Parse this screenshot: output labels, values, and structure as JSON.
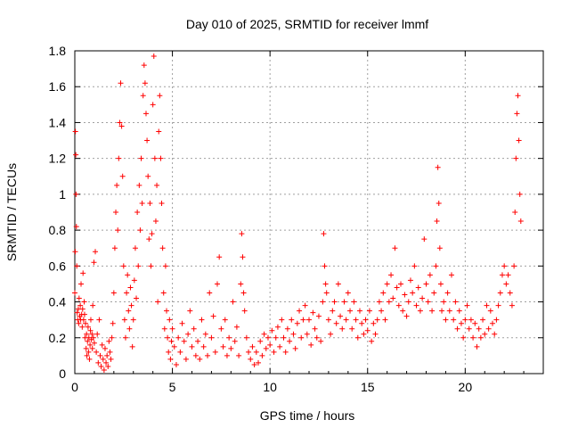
{
  "chart_data": {
    "type": "scatter",
    "title": "Day 010 of 2025, SRMTID for receiver lmmf",
    "xlabel": "GPS time / hours",
    "ylabel": "SRMTID / TECUs",
    "xlim": [
      0,
      24
    ],
    "ylim": [
      0,
      1.8
    ],
    "xticks": [
      0,
      5,
      10,
      15,
      20
    ],
    "yticks": [
      0,
      0.2,
      0.4,
      0.6,
      0.8,
      1,
      1.2,
      1.4,
      1.6,
      1.8
    ],
    "xtick_labels": [
      "0",
      "5",
      "10",
      "15",
      "20"
    ],
    "ytick_labels": [
      "0",
      "0.2",
      "0.4",
      "0.6",
      "0.8",
      "1",
      "1.2",
      "1.4",
      "1.6",
      "1.8"
    ],
    "grid": true,
    "marker": "+",
    "color": "#ff0000",
    "series": [
      {
        "name": "SRMTID",
        "points": [
          [
            0.0,
            0.45
          ],
          [
            0.02,
            0.68
          ],
          [
            0.03,
            1.35
          ],
          [
            0.05,
            1.22
          ],
          [
            0.06,
            1.0
          ],
          [
            0.08,
            0.82
          ],
          [
            0.1,
            0.6
          ],
          [
            0.12,
            0.34
          ],
          [
            0.15,
            0.3
          ],
          [
            0.18,
            0.36
          ],
          [
            0.2,
            0.28
          ],
          [
            0.22,
            0.42
          ],
          [
            0.25,
            0.32
          ],
          [
            0.28,
            0.38
          ],
          [
            0.3,
            0.3
          ],
          [
            0.32,
            0.5
          ],
          [
            0.35,
            0.33
          ],
          [
            0.38,
            0.26
          ],
          [
            0.4,
            0.36
          ],
          [
            0.42,
            0.56
          ],
          [
            0.45,
            0.3
          ],
          [
            0.48,
            0.4
          ],
          [
            0.5,
            0.33
          ],
          [
            0.52,
            0.2
          ],
          [
            0.55,
            0.28
          ],
          [
            0.58,
            0.14
          ],
          [
            0.6,
            0.22
          ],
          [
            0.62,
            0.1
          ],
          [
            0.65,
            0.18
          ],
          [
            0.68,
            0.26
          ],
          [
            0.7,
            0.12
          ],
          [
            0.72,
            0.2
          ],
          [
            0.75,
            0.08
          ],
          [
            0.78,
            0.16
          ],
          [
            0.8,
            0.24
          ],
          [
            0.82,
            0.3
          ],
          [
            0.85,
            0.19
          ],
          [
            0.88,
            0.22
          ],
          [
            0.9,
            0.14
          ],
          [
            0.92,
            0.38
          ],
          [
            0.95,
            0.2
          ],
          [
            0.98,
            0.62
          ],
          [
            1.0,
            0.17
          ],
          [
            1.05,
            0.68
          ],
          [
            1.1,
            0.12
          ],
          [
            1.15,
            0.22
          ],
          [
            1.2,
            0.06
          ],
          [
            1.25,
            0.3
          ],
          [
            1.3,
            0.1
          ],
          [
            1.35,
            0.04
          ],
          [
            1.4,
            0.16
          ],
          [
            1.45,
            0.08
          ],
          [
            1.5,
            0.02
          ],
          [
            1.55,
            0.14
          ],
          [
            1.6,
            0.06
          ],
          [
            1.65,
            0.1
          ],
          [
            1.7,
            0.04
          ],
          [
            1.75,
            0.18
          ],
          [
            1.8,
            0.12
          ],
          [
            1.85,
            0.08
          ],
          [
            1.9,
            0.2
          ],
          [
            1.95,
            0.28
          ],
          [
            2.0,
            0.45
          ],
          [
            2.05,
            0.7
          ],
          [
            2.1,
            0.9
          ],
          [
            2.15,
            1.05
          ],
          [
            2.2,
            0.8
          ],
          [
            2.25,
            1.2
          ],
          [
            2.3,
            1.4
          ],
          [
            2.35,
            1.62
          ],
          [
            2.4,
            1.38
          ],
          [
            2.45,
            1.1
          ],
          [
            2.5,
            0.6
          ],
          [
            2.55,
            0.3
          ],
          [
            2.6,
            0.2
          ],
          [
            2.65,
            0.45
          ],
          [
            2.7,
            0.55
          ],
          [
            2.75,
            0.35
          ],
          [
            2.8,
            0.25
          ],
          [
            2.85,
            0.48
          ],
          [
            2.9,
            0.38
          ],
          [
            2.95,
            0.15
          ],
          [
            3.0,
            0.3
          ],
          [
            3.05,
            0.52
          ],
          [
            3.1,
            0.7
          ],
          [
            3.15,
            0.42
          ],
          [
            3.2,
            0.9
          ],
          [
            3.25,
            0.6
          ],
          [
            3.3,
            1.05
          ],
          [
            3.35,
            0.8
          ],
          [
            3.4,
            1.2
          ],
          [
            3.45,
            0.95
          ],
          [
            3.5,
            1.55
          ],
          [
            3.55,
            1.72
          ],
          [
            3.6,
            1.62
          ],
          [
            3.65,
            1.45
          ],
          [
            3.7,
            1.3
          ],
          [
            3.75,
            1.1
          ],
          [
            3.8,
            0.75
          ],
          [
            3.85,
            0.95
          ],
          [
            3.9,
            0.6
          ],
          [
            3.95,
            0.78
          ],
          [
            4.0,
            1.5
          ],
          [
            4.05,
            1.77
          ],
          [
            4.1,
            1.2
          ],
          [
            4.15,
            0.85
          ],
          [
            4.2,
            1.05
          ],
          [
            4.25,
            0.4
          ],
          [
            4.3,
            1.35
          ],
          [
            4.35,
            1.55
          ],
          [
            4.4,
            1.2
          ],
          [
            4.45,
            0.95
          ],
          [
            4.5,
            0.7
          ],
          [
            4.55,
            0.45
          ],
          [
            4.6,
            0.25
          ],
          [
            4.65,
            0.6
          ],
          [
            4.7,
            0.35
          ],
          [
            4.75,
            0.2
          ],
          [
            4.8,
            0.12
          ],
          [
            4.85,
            0.3
          ],
          [
            4.9,
            0.08
          ],
          [
            4.95,
            0.18
          ],
          [
            5.0,
            0.25
          ],
          [
            5.1,
            0.15
          ],
          [
            5.2,
            0.05
          ],
          [
            5.3,
            0.2
          ],
          [
            5.4,
            0.12
          ],
          [
            5.5,
            0.28
          ],
          [
            5.6,
            0.18
          ],
          [
            5.7,
            0.08
          ],
          [
            5.8,
            0.22
          ],
          [
            5.9,
            0.35
          ],
          [
            6.0,
            0.15
          ],
          [
            6.1,
            0.25
          ],
          [
            6.2,
            0.1
          ],
          [
            6.3,
            0.18
          ],
          [
            6.4,
            0.08
          ],
          [
            6.5,
            0.3
          ],
          [
            6.6,
            0.15
          ],
          [
            6.7,
            0.22
          ],
          [
            6.8,
            0.1
          ],
          [
            6.9,
            0.45
          ],
          [
            7.0,
            0.2
          ],
          [
            7.1,
            0.32
          ],
          [
            7.2,
            0.12
          ],
          [
            7.3,
            0.5
          ],
          [
            7.4,
            0.65
          ],
          [
            7.5,
            0.25
          ],
          [
            7.6,
            0.15
          ],
          [
            7.7,
            0.3
          ],
          [
            7.8,
            0.1
          ],
          [
            7.9,
            0.2
          ],
          [
            8.0,
            0.14
          ],
          [
            8.1,
            0.4
          ],
          [
            8.2,
            0.18
          ],
          [
            8.3,
            0.26
          ],
          [
            8.4,
            0.1
          ],
          [
            8.5,
            0.5
          ],
          [
            8.55,
            0.78
          ],
          [
            8.6,
            0.65
          ],
          [
            8.65,
            0.45
          ],
          [
            8.7,
            0.35
          ],
          [
            8.8,
            0.2
          ],
          [
            8.9,
            0.12
          ],
          [
            9.0,
            0.08
          ],
          [
            9.1,
            0.15
          ],
          [
            9.2,
            0.05
          ],
          [
            9.3,
            0.12
          ],
          [
            9.4,
            0.06
          ],
          [
            9.5,
            0.18
          ],
          [
            9.6,
            0.1
          ],
          [
            9.7,
            0.22
          ],
          [
            9.8,
            0.14
          ],
          [
            9.9,
            0.2
          ],
          [
            10.0,
            0.16
          ],
          [
            10.1,
            0.24
          ],
          [
            10.2,
            0.12
          ],
          [
            10.3,
            0.2
          ],
          [
            10.4,
            0.26
          ],
          [
            10.5,
            0.15
          ],
          [
            10.6,
            0.3
          ],
          [
            10.7,
            0.2
          ],
          [
            10.8,
            0.12
          ],
          [
            10.9,
            0.25
          ],
          [
            11.0,
            0.18
          ],
          [
            11.1,
            0.3
          ],
          [
            11.2,
            0.22
          ],
          [
            11.3,
            0.14
          ],
          [
            11.4,
            0.28
          ],
          [
            11.5,
            0.35
          ],
          [
            11.6,
            0.2
          ],
          [
            11.7,
            0.3
          ],
          [
            11.8,
            0.38
          ],
          [
            11.9,
            0.22
          ],
          [
            12.0,
            0.3
          ],
          [
            12.1,
            0.16
          ],
          [
            12.2,
            0.34
          ],
          [
            12.3,
            0.25
          ],
          [
            12.4,
            0.2
          ],
          [
            12.5,
            0.32
          ],
          [
            12.6,
            0.18
          ],
          [
            12.7,
            0.4
          ],
          [
            12.75,
            0.78
          ],
          [
            12.8,
            0.6
          ],
          [
            12.85,
            0.5
          ],
          [
            12.9,
            0.45
          ],
          [
            13.0,
            0.3
          ],
          [
            13.1,
            0.22
          ],
          [
            13.2,
            0.35
          ],
          [
            13.3,
            0.4
          ],
          [
            13.4,
            0.28
          ],
          [
            13.5,
            0.5
          ],
          [
            13.6,
            0.32
          ],
          [
            13.7,
            0.25
          ],
          [
            13.8,
            0.4
          ],
          [
            13.9,
            0.3
          ],
          [
            14.0,
            0.45
          ],
          [
            14.1,
            0.35
          ],
          [
            14.2,
            0.25
          ],
          [
            14.3,
            0.4
          ],
          [
            14.4,
            0.3
          ],
          [
            14.5,
            0.2
          ],
          [
            14.6,
            0.35
          ],
          [
            14.7,
            0.28
          ],
          [
            14.8,
            0.22
          ],
          [
            14.9,
            0.3
          ],
          [
            15.0,
            0.24
          ],
          [
            15.1,
            0.35
          ],
          [
            15.2,
            0.18
          ],
          [
            15.3,
            0.28
          ],
          [
            15.4,
            0.22
          ],
          [
            15.5,
            0.3
          ],
          [
            15.6,
            0.4
          ],
          [
            15.7,
            0.35
          ],
          [
            15.8,
            0.45
          ],
          [
            15.9,
            0.3
          ],
          [
            16.0,
            0.5
          ],
          [
            16.1,
            0.4
          ],
          [
            16.2,
            0.55
          ],
          [
            16.3,
            0.42
          ],
          [
            16.4,
            0.7
          ],
          [
            16.5,
            0.48
          ],
          [
            16.6,
            0.38
          ],
          [
            16.7,
            0.5
          ],
          [
            16.8,
            0.35
          ],
          [
            16.9,
            0.44
          ],
          [
            17.0,
            0.32
          ],
          [
            17.1,
            0.4
          ],
          [
            17.2,
            0.52
          ],
          [
            17.3,
            0.45
          ],
          [
            17.4,
            0.6
          ],
          [
            17.5,
            0.38
          ],
          [
            17.6,
            0.48
          ],
          [
            17.7,
            0.35
          ],
          [
            17.8,
            0.42
          ],
          [
            17.9,
            0.75
          ],
          [
            18.0,
            0.5
          ],
          [
            18.1,
            0.4
          ],
          [
            18.2,
            0.55
          ],
          [
            18.3,
            0.35
          ],
          [
            18.4,
            0.45
          ],
          [
            18.5,
            0.6
          ],
          [
            18.55,
            0.85
          ],
          [
            18.6,
            1.15
          ],
          [
            18.65,
            0.95
          ],
          [
            18.7,
            0.7
          ],
          [
            18.75,
            0.5
          ],
          [
            18.8,
            0.35
          ],
          [
            18.9,
            0.4
          ],
          [
            19.0,
            0.3
          ],
          [
            19.1,
            0.45
          ],
          [
            19.2,
            0.35
          ],
          [
            19.3,
            0.55
          ],
          [
            19.4,
            0.3
          ],
          [
            19.5,
            0.4
          ],
          [
            19.6,
            0.25
          ],
          [
            19.7,
            0.35
          ],
          [
            19.8,
            0.28
          ],
          [
            19.9,
            0.2
          ],
          [
            20.0,
            0.3
          ],
          [
            20.1,
            0.38
          ],
          [
            20.2,
            0.25
          ],
          [
            20.3,
            0.3
          ],
          [
            20.4,
            0.2
          ],
          [
            20.5,
            0.28
          ],
          [
            20.6,
            0.15
          ],
          [
            20.7,
            0.25
          ],
          [
            20.8,
            0.2
          ],
          [
            20.9,
            0.3
          ],
          [
            21.0,
            0.22
          ],
          [
            21.1,
            0.38
          ],
          [
            21.2,
            0.25
          ],
          [
            21.3,
            0.35
          ],
          [
            21.4,
            0.28
          ],
          [
            21.5,
            0.22
          ],
          [
            21.6,
            0.3
          ],
          [
            21.7,
            0.38
          ],
          [
            21.8,
            0.45
          ],
          [
            21.9,
            0.55
          ],
          [
            22.0,
            0.6
          ],
          [
            22.1,
            0.5
          ],
          [
            22.2,
            0.55
          ],
          [
            22.3,
            0.45
          ],
          [
            22.4,
            0.38
          ],
          [
            22.5,
            0.6
          ],
          [
            22.55,
            0.9
          ],
          [
            22.6,
            1.2
          ],
          [
            22.65,
            1.45
          ],
          [
            22.7,
            1.55
          ],
          [
            22.75,
            1.3
          ],
          [
            22.8,
            1.0
          ],
          [
            22.85,
            0.85
          ]
        ]
      }
    ]
  }
}
